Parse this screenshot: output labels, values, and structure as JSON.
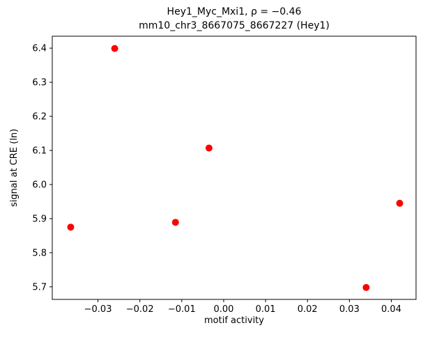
{
  "chart_data": {
    "type": "scatter",
    "title_line1": "Hey1_Myc_Mxi1, ρ = −0.46",
    "title_line2": "mm10_chr3_8667075_8667227 (Hey1)",
    "xlabel": "motif activity",
    "ylabel": "signal at CRE (ln)",
    "marker_color": "#ff0000",
    "marker_radius": 5,
    "grid": false,
    "xlim": [
      -0.0409,
      0.0459
    ],
    "ylim": [
      5.663,
      6.435
    ],
    "xticks": [
      {
        "v": -0.03,
        "label": "−0.03"
      },
      {
        "v": -0.02,
        "label": "−0.02"
      },
      {
        "v": -0.01,
        "label": "−0.01"
      },
      {
        "v": 0.0,
        "label": "0.00"
      },
      {
        "v": 0.01,
        "label": "0.01"
      },
      {
        "v": 0.02,
        "label": "0.02"
      },
      {
        "v": 0.03,
        "label": "0.03"
      },
      {
        "v": 0.04,
        "label": "0.04"
      }
    ],
    "yticks": [
      {
        "v": 5.7,
        "label": "5.7"
      },
      {
        "v": 5.8,
        "label": "5.8"
      },
      {
        "v": 5.9,
        "label": "5.9"
      },
      {
        "v": 6.0,
        "label": "6.0"
      },
      {
        "v": 6.1,
        "label": "6.1"
      },
      {
        "v": 6.2,
        "label": "6.2"
      },
      {
        "v": 6.3,
        "label": "6.3"
      },
      {
        "v": 6.4,
        "label": "6.4"
      }
    ],
    "points": [
      {
        "x": -0.0365,
        "y": 5.875
      },
      {
        "x": -0.026,
        "y": 6.399
      },
      {
        "x": -0.0115,
        "y": 5.889
      },
      {
        "x": -0.0035,
        "y": 6.107
      },
      {
        "x": 0.034,
        "y": 5.698
      },
      {
        "x": 0.042,
        "y": 5.945
      }
    ]
  }
}
